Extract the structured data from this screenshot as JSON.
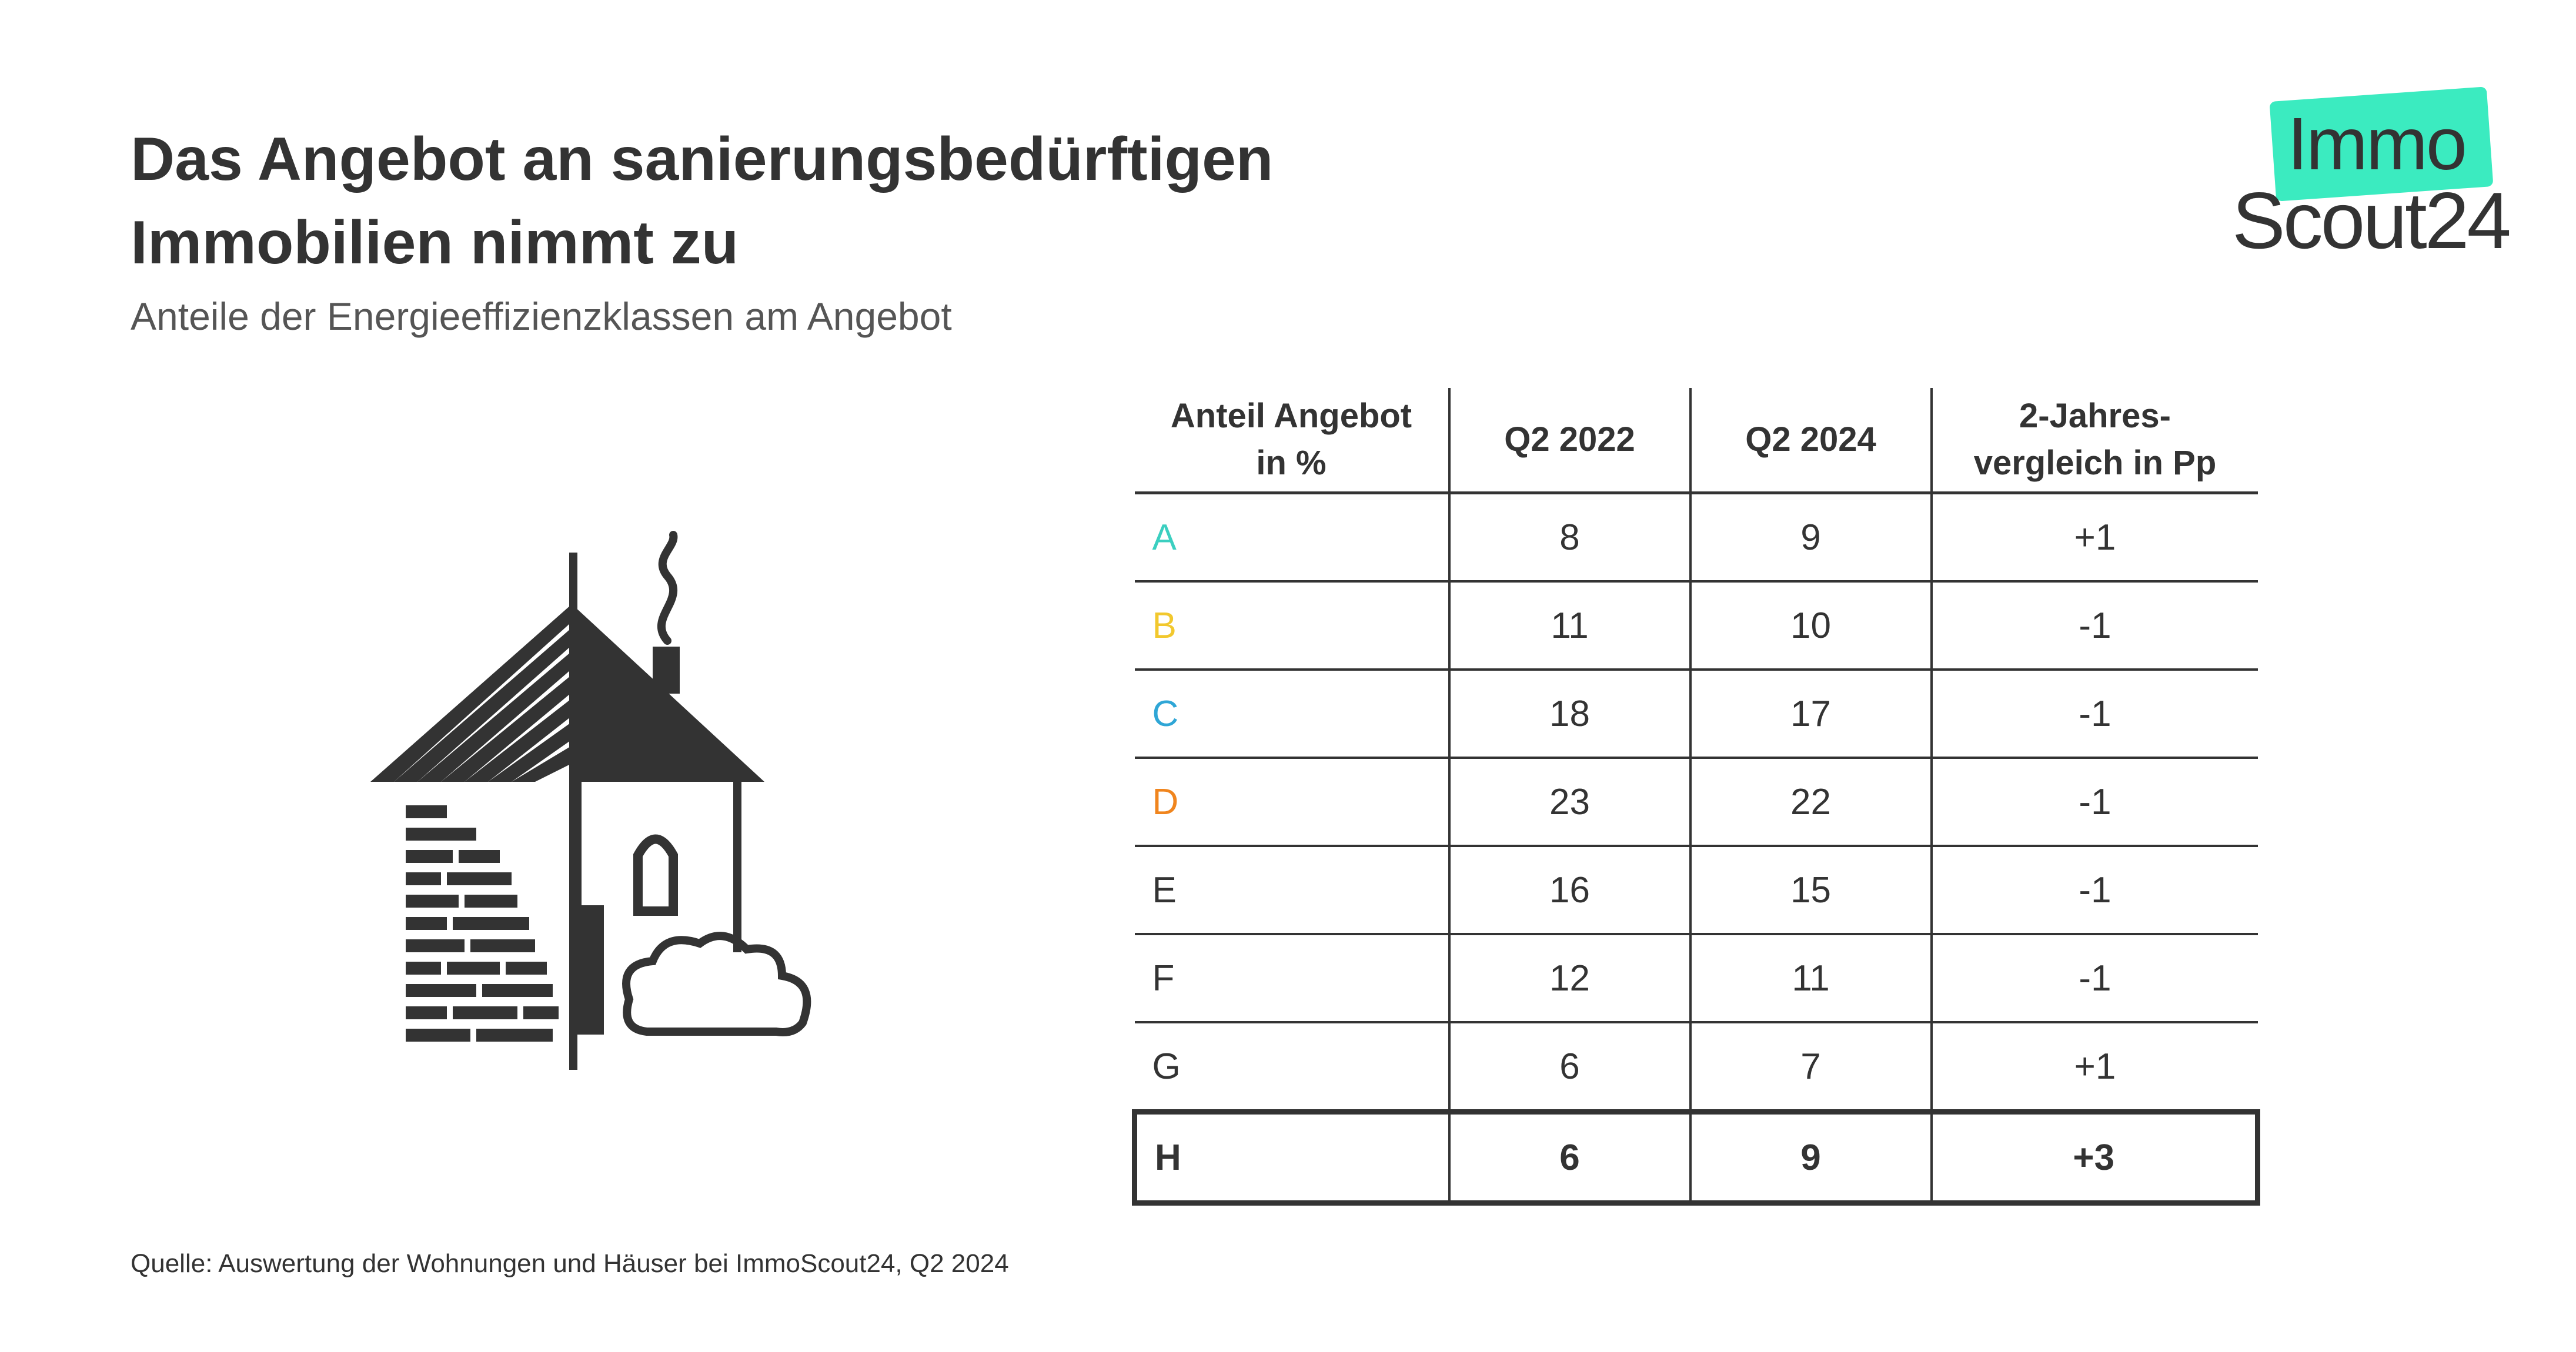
{
  "header": {
    "title": "Das Angebot an sanierungsbedürftigen Immobilien nimmt zu",
    "subtitle": "Anteile der Energieeffizienzklassen am Angebot"
  },
  "logo": {
    "line1": "Immo",
    "line2": "Scout24",
    "tag_color": "#3BEBC0"
  },
  "chart_data": {
    "type": "table",
    "title": "Das Angebot an sanierungsbedürftigen Immobilien nimmt zu",
    "subtitle": "Anteile der Energieeffizienzklassen am Angebot",
    "columns": [
      "Anteil Angebot in %",
      "Q2 2022",
      "Q2 2024",
      "2-Jahres-vergleich in Pp"
    ],
    "rows": [
      {
        "class": "A",
        "color": "#3BCFC0",
        "q2_2022": "8",
        "q2_2024": "9",
        "change": "+1"
      },
      {
        "class": "B",
        "color": "#F2C82E",
        "q2_2022": "11",
        "q2_2024": "10",
        "change": "-1"
      },
      {
        "class": "C",
        "color": "#2FA6D6",
        "q2_2022": "18",
        "q2_2024": "17",
        "change": "-1"
      },
      {
        "class": "D",
        "color": "#F0851E",
        "q2_2022": "23",
        "q2_2024": "22",
        "change": "-1"
      },
      {
        "class": "E",
        "color": "#333333",
        "q2_2022": "16",
        "q2_2024": "15",
        "change": "-1"
      },
      {
        "class": "F",
        "color": "#333333",
        "q2_2022": "12",
        "q2_2024": "11",
        "change": "-1"
      },
      {
        "class": "G",
        "color": "#333333",
        "q2_2022": "6",
        "q2_2024": "7",
        "change": "+1"
      },
      {
        "class": "H",
        "color": "#333333",
        "q2_2022": "6",
        "q2_2024": "9",
        "change": "+3",
        "highlighted": true
      }
    ]
  },
  "footer": {
    "source": "Quelle: Auswertung der Wohnungen und Häuser bei ImmoScout24, Q2 2024"
  }
}
